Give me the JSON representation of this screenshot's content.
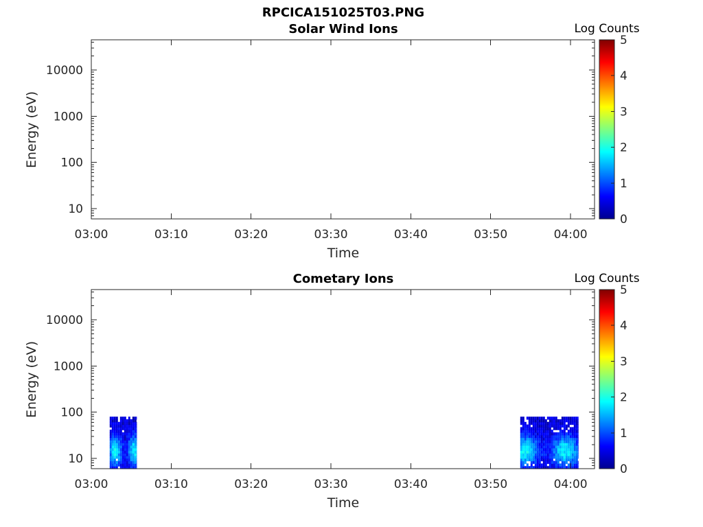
{
  "figure_title": "RPCICA151025T03.PNG",
  "chart_data": [
    {
      "type": "heatmap",
      "title": "Solar Wind Ions",
      "xlabel": "Time",
      "ylabel": "Energy (eV)",
      "y_scale": "log",
      "x_ticks": [
        "03:00",
        "03:10",
        "03:20",
        "03:30",
        "03:40",
        "03:50",
        "04:00"
      ],
      "y_ticks": [
        "10",
        "100",
        "1000",
        "10000"
      ],
      "x_range_minutes": [
        0,
        63
      ],
      "y_range_eV": [
        6,
        45000
      ],
      "colorbar": {
        "label": "Log Counts",
        "ticks": [
          "0",
          "1",
          "2",
          "3",
          "4",
          "5"
        ],
        "range": [
          0,
          5
        ],
        "colormap": "jet"
      },
      "blocks": []
    },
    {
      "type": "heatmap",
      "title": "Cometary Ions",
      "xlabel": "Time",
      "ylabel": "Energy (eV)",
      "y_scale": "log",
      "x_ticks": [
        "03:00",
        "03:10",
        "03:20",
        "03:30",
        "03:40",
        "03:50",
        "04:00"
      ],
      "y_ticks": [
        "10",
        "100",
        "1000",
        "10000"
      ],
      "x_range_minutes": [
        0,
        63
      ],
      "y_range_eV": [
        6,
        45000
      ],
      "colorbar": {
        "label": "Log Counts",
        "ticks": [
          "0",
          "1",
          "2",
          "3",
          "4",
          "5"
        ],
        "range": [
          0,
          5
        ],
        "colormap": "jet"
      },
      "blocks": [
        {
          "t_start_min": 2.3,
          "t_end_min": 5.7,
          "e_min_eV": 6,
          "e_max_eV": 80,
          "peak_log_counts": 2.0
        },
        {
          "t_start_min": 53.7,
          "t_end_min": 61.0,
          "e_min_eV": 6,
          "e_max_eV": 80,
          "peak_log_counts": 2.0
        }
      ]
    }
  ]
}
